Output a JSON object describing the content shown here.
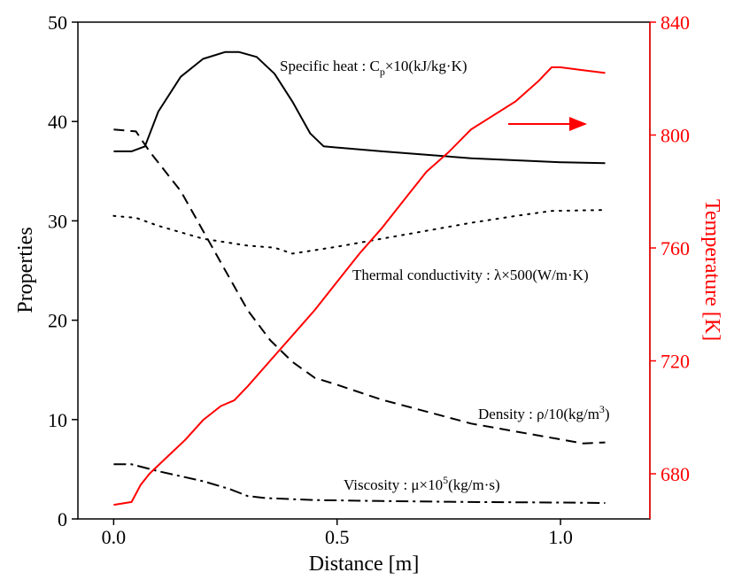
{
  "chart_data": {
    "type": "line",
    "xlabel": "Distance [m]",
    "ylabel_left": "Properties",
    "ylabel_right": "Temperature [K]",
    "xlim": [
      -0.08,
      1.2
    ],
    "ylim_left": [
      0,
      50
    ],
    "ylim_right": [
      664,
      840
    ],
    "x_ticks": [
      0.0,
      0.5,
      1.0
    ],
    "x_tick_labels": [
      "0.0",
      "0.5",
      "1.0"
    ],
    "y_ticks_left": [
      0,
      10,
      20,
      30,
      40,
      50
    ],
    "y_tick_labels_left": [
      "0",
      "10",
      "20",
      "30",
      "40",
      "50"
    ],
    "y_ticks_right": [
      680,
      720,
      760,
      800,
      840
    ],
    "y_tick_labels_right": [
      "680",
      "720",
      "760",
      "800",
      "840"
    ],
    "colors": {
      "left_axis": "#000000",
      "right_axis": "#ff0000"
    },
    "series": [
      {
        "name": "Specific heat",
        "axis": "left",
        "style": "solid",
        "color": "#000000",
        "x": [
          0.0,
          0.04,
          0.07,
          0.1,
          0.15,
          0.2,
          0.25,
          0.28,
          0.32,
          0.36,
          0.4,
          0.44,
          0.47,
          0.6,
          0.8,
          1.0,
          1.1
        ],
        "y": [
          37.0,
          37.0,
          37.5,
          41.0,
          44.5,
          46.3,
          47.0,
          47.0,
          46.5,
          44.8,
          42.0,
          38.8,
          37.5,
          37.0,
          36.3,
          35.9,
          35.8
        ]
      },
      {
        "name": "Thermal conductivity",
        "axis": "left",
        "style": "dotted",
        "color": "#000000",
        "x": [
          0.0,
          0.05,
          0.1,
          0.2,
          0.3,
          0.36,
          0.4,
          0.5,
          0.6,
          0.7,
          0.8,
          0.9,
          0.98,
          1.1
        ],
        "y": [
          30.5,
          30.3,
          29.5,
          28.2,
          27.5,
          27.3,
          26.7,
          27.4,
          28.2,
          29.0,
          29.8,
          30.5,
          31.0,
          31.1
        ]
      },
      {
        "name": "Density",
        "axis": "left",
        "style": "dashed",
        "color": "#000000",
        "x": [
          0.0,
          0.05,
          0.08,
          0.15,
          0.2,
          0.25,
          0.3,
          0.35,
          0.4,
          0.45,
          0.5,
          0.6,
          0.7,
          0.8,
          0.9,
          1.0,
          1.05,
          1.1
        ],
        "y": [
          39.2,
          39.0,
          37.0,
          33.0,
          29.0,
          25.0,
          21.0,
          18.0,
          15.8,
          14.2,
          13.5,
          12.0,
          10.8,
          9.6,
          8.8,
          8.0,
          7.6,
          7.7
        ]
      },
      {
        "name": "Viscosity",
        "axis": "left",
        "style": "dashdot",
        "color": "#000000",
        "x": [
          0.0,
          0.04,
          0.1,
          0.2,
          0.26,
          0.3,
          0.34,
          0.45,
          0.6,
          0.8,
          1.0,
          1.1
        ],
        "y": [
          5.5,
          5.5,
          4.8,
          3.8,
          3.0,
          2.3,
          2.1,
          1.9,
          1.8,
          1.7,
          1.65,
          1.6
        ]
      },
      {
        "name": "Temperature",
        "axis": "right",
        "style": "solid",
        "color": "#ff0000",
        "x": [
          0.0,
          0.04,
          0.06,
          0.08,
          0.12,
          0.16,
          0.2,
          0.24,
          0.27,
          0.3,
          0.35,
          0.4,
          0.45,
          0.5,
          0.55,
          0.6,
          0.65,
          0.7,
          0.75,
          0.8,
          0.85,
          0.9,
          0.95,
          0.98,
          1.0,
          1.05,
          1.1
        ],
        "y": [
          669,
          670,
          676,
          680,
          686,
          692,
          699,
          704,
          706,
          711,
          720,
          729,
          738,
          748,
          758,
          767,
          777,
          787,
          794,
          802,
          807,
          812,
          819,
          824,
          824,
          823,
          822
        ]
      }
    ],
    "annotations": [
      {
        "id": "cp",
        "prefix": "Specific heat : C",
        "sub": "p",
        "suffix": "×10(kJ/kg·K)"
      },
      {
        "id": "lambda",
        "text": "Thermal conductivity : λ×500(W/m·K)"
      },
      {
        "id": "rho",
        "prefix": "Density : ρ/10(kg/m",
        "sup": "3",
        "suffix": ")"
      },
      {
        "id": "mu",
        "prefix": "Viscosity : μ×10",
        "sup": "5",
        "suffix": "(kg/m·s)"
      }
    ]
  }
}
